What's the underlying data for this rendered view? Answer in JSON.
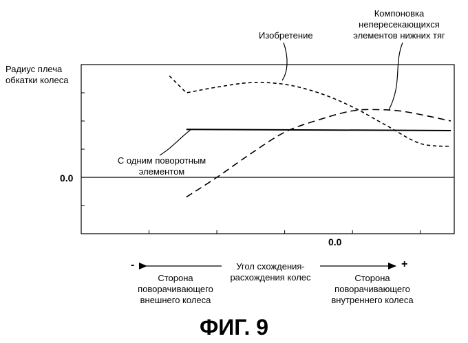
{
  "chart_data": {
    "type": "line",
    "ylabel": "Радиус плеча\nобкатки колеса",
    "y_zero_label": "0.0",
    "x_zero_label": "0.0",
    "x_axis_caption": "Угол схождения-\nрасхождения колес",
    "minus_sign": "-",
    "plus_sign": "+",
    "left_side_label": "Сторона\nповорачивающего\nвнешнего колеса",
    "right_side_label": "Сторона\nповорачивающего\nвнутреннего колеса",
    "xlim": [
      -4,
      1.5
    ],
    "ylim": [
      -1,
      2
    ],
    "series": [
      {
        "name": "Изобретение",
        "style": "short-dash",
        "x": [
          -2.7,
          -2.45,
          -2.0,
          -1.5,
          -1.0,
          -0.5,
          0.0,
          0.5,
          1.0,
          1.45
        ],
        "y": [
          1.8,
          1.5,
          1.6,
          1.68,
          1.65,
          1.5,
          1.25,
          0.92,
          0.6,
          0.55
        ]
      },
      {
        "name": "Компоновка\nнепересекающихся\nэлементов нижних тяг",
        "style": "long-dash",
        "x": [
          -2.45,
          -2.0,
          -1.5,
          -1.0,
          -0.5,
          0.0,
          0.4,
          0.8,
          1.45
        ],
        "y": [
          -0.35,
          0.0,
          0.42,
          0.8,
          1.02,
          1.18,
          1.2,
          1.16,
          1.0
        ]
      },
      {
        "name": "С одним поворотным\nэлементом",
        "style": "solid",
        "x": [
          -2.45,
          1.45
        ],
        "y": [
          0.85,
          0.83
        ]
      }
    ]
  },
  "figure_caption": "ФИГ. 9"
}
